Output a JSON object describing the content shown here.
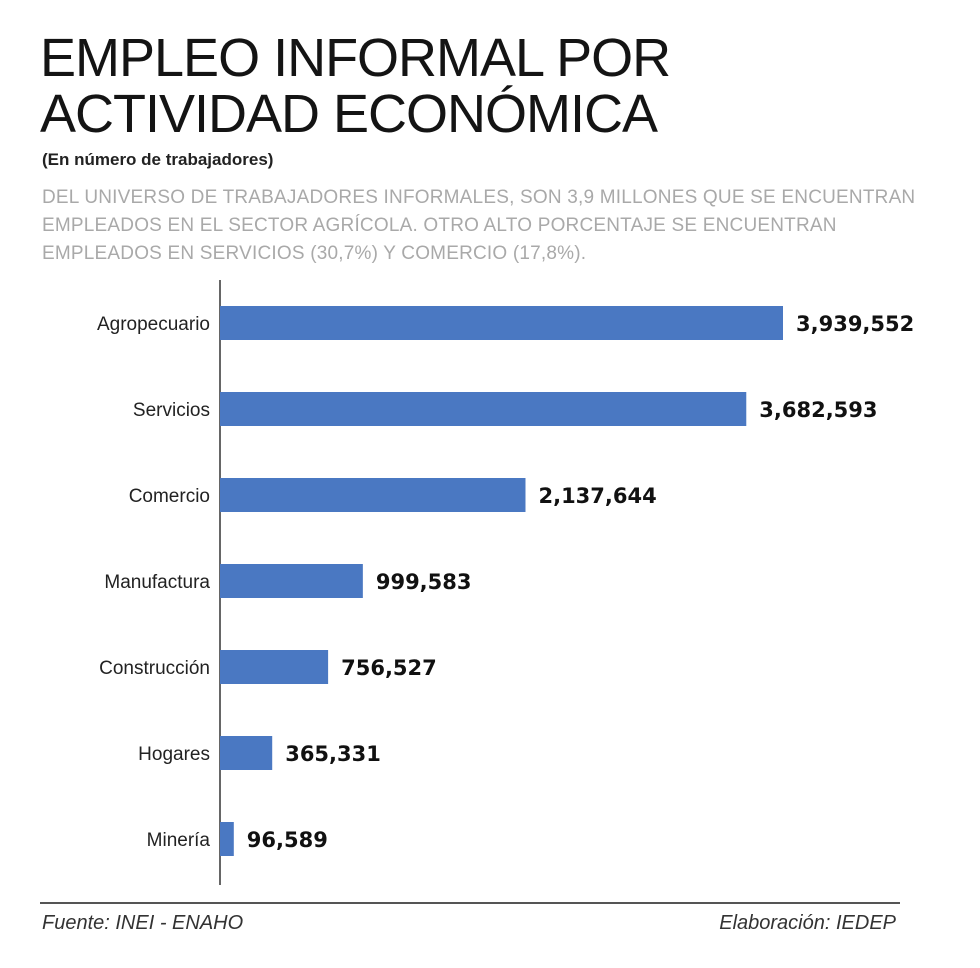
{
  "header": {
    "title": "EMPLEO INFORMAL POR ACTIVIDAD ECONÓMICA",
    "subtitle": "(En número de trabajadores)",
    "description": "DEL UNIVERSO DE TRABAJADORES INFORMALES, SON 3,9 MILLONES QUE SE ENCUENTRAN EMPLEADOS EN EL SECTOR AGRÍCOLA. OTRO ALTO PORCENTAJE SE ENCUENTRAN EMPLEADOS EN SERVICIOS (30,7%) Y COMERCIO (17,8%)."
  },
  "footer": {
    "source": "Fuente: INEI - ENAHO",
    "credit": "Elaboración: IEDEP"
  },
  "colors": {
    "bar": "#4a78c2",
    "axis": "#666666",
    "label": "#222222",
    "value": "#111111"
  },
  "chart_data": {
    "type": "bar",
    "orientation": "horizontal",
    "categories": [
      "Agropecuario",
      "Servicios",
      "Comercio",
      "Manufactura",
      "Construcción",
      "Hogares",
      "Minería"
    ],
    "values": [
      3939552,
      3682593,
      2137644,
      999583,
      756527,
      365331,
      96589
    ],
    "value_labels": [
      "3,939,552",
      "3,682,593",
      "2,137,644",
      "999,583",
      "756,527",
      "365,331",
      "96,589"
    ],
    "xlim": [
      0,
      3939552
    ],
    "grid": false,
    "legend": "none"
  }
}
